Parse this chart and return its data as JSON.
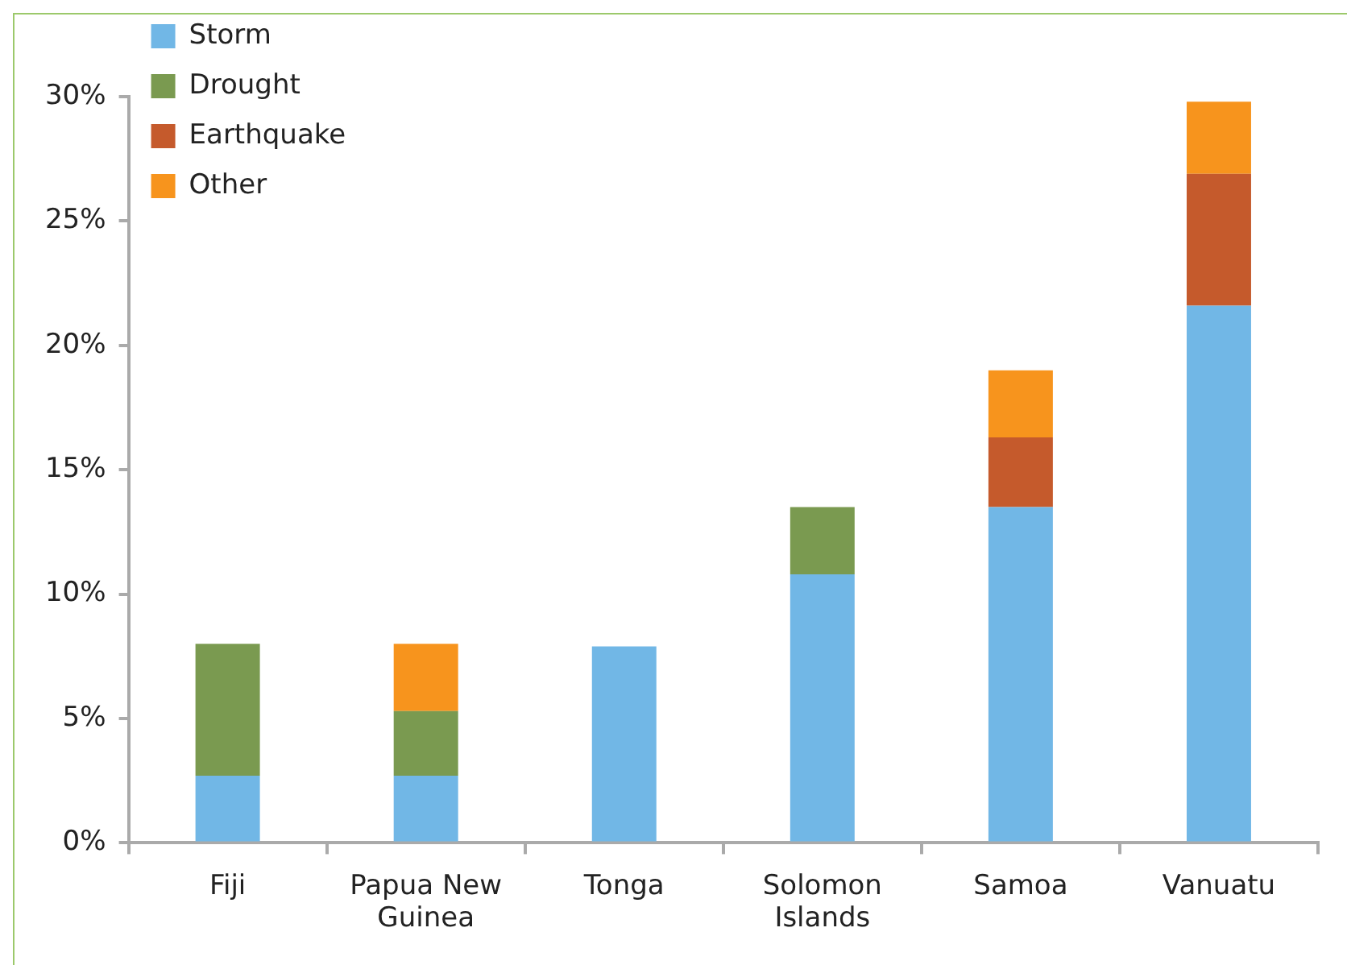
{
  "chart_data": {
    "type": "bar",
    "stacked": true,
    "legend": "top left",
    "grid": false,
    "categories": [
      "Fiji",
      "Papua New Guinea",
      "Tonga",
      "Solomon Islands",
      "Samoa",
      "Vanuatu"
    ],
    "series": [
      {
        "name": "Storm",
        "color": "#71b7e6",
        "values": [
          2.7,
          2.7,
          7.9,
          10.8,
          13.5,
          21.6
        ]
      },
      {
        "name": "Drought",
        "color": "#7a9a50",
        "values": [
          5.3,
          2.6,
          null,
          2.7,
          null,
          null
        ]
      },
      {
        "name": "Earthquake",
        "color": "#c55a2c",
        "values": [
          null,
          null,
          null,
          null,
          2.8,
          5.3
        ]
      },
      {
        "name": "Other",
        "color": "#f7941d",
        "values": [
          null,
          2.7,
          null,
          null,
          2.7,
          2.9
        ]
      }
    ],
    "ylim": [
      0,
      30
    ],
    "yticks": [
      {
        "value": 0,
        "label": "0%"
      },
      {
        "value": 5,
        "label": "5%"
      },
      {
        "value": 10,
        "label": "10%"
      },
      {
        "value": 15,
        "label": "15%"
      },
      {
        "value": 20,
        "label": "20%"
      },
      {
        "value": 25,
        "label": "25%"
      },
      {
        "value": 30,
        "label": "30%"
      }
    ]
  }
}
